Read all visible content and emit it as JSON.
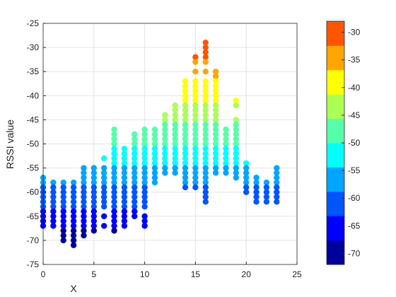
{
  "chart_data": {
    "type": "scatter",
    "title": "",
    "xlabel": "X",
    "ylabel": "RSSI value",
    "xlim": [
      0,
      25
    ],
    "ylim": [
      -75,
      -25
    ],
    "xticks": [
      0,
      5,
      10,
      15,
      20,
      25
    ],
    "yticks": [
      -25,
      -30,
      -35,
      -40,
      -45,
      -50,
      -55,
      -60,
      -65,
      -70,
      -75
    ],
    "grid": true,
    "colorbar": {
      "placement": "right",
      "range": [
        -72,
        -28
      ],
      "ticks": [
        -30,
        -35,
        -40,
        -45,
        -50,
        -55,
        -60,
        -65,
        -70
      ],
      "colors": [
        "#00009b",
        "#0000ff",
        "#0055ff",
        "#00a5ff",
        "#00ffff",
        "#55ffaa",
        "#aaff55",
        "#ffff00",
        "#ffa500",
        "#ff5500"
      ]
    },
    "columns": [
      {
        "x": 0,
        "values": [
          -57,
          -58,
          -59,
          -60,
          -61,
          -62,
          -63,
          -64,
          -65,
          -66,
          -67
        ]
      },
      {
        "x": 1,
        "values": [
          -58,
          -59,
          -60,
          -61,
          -62,
          -63,
          -64,
          -65,
          -66,
          -67
        ]
      },
      {
        "x": 2,
        "values": [
          -58,
          -59,
          -60,
          -61,
          -62,
          -63,
          -64,
          -65,
          -66,
          -67,
          -68,
          -69,
          -70
        ]
      },
      {
        "x": 3,
        "values": [
          -58,
          -59,
          -60,
          -61,
          -62,
          -63,
          -64,
          -65,
          -66,
          -67,
          -68,
          -69,
          -70,
          -71
        ]
      },
      {
        "x": 4,
        "values": [
          -55,
          -56,
          -57,
          -58,
          -59,
          -60,
          -61,
          -62,
          -63,
          -64,
          -65,
          -66,
          -67,
          -68,
          -69
        ]
      },
      {
        "x": 5,
        "values": [
          -55,
          -56,
          -57,
          -58,
          -59,
          -60,
          -61,
          -62,
          -63,
          -64,
          -65,
          -66,
          -67,
          -68
        ]
      },
      {
        "x": 6,
        "values": [
          -53,
          -55,
          -56,
          -57,
          -58,
          -59,
          -60,
          -61,
          -62,
          -63,
          -65,
          -67
        ]
      },
      {
        "x": 7,
        "values": [
          -47,
          -48,
          -49,
          -50,
          -51,
          -52,
          -53,
          -54,
          -55,
          -56,
          -57,
          -58,
          -59,
          -60,
          -61,
          -62,
          -63,
          -64,
          -65,
          -66,
          -67,
          -68
        ]
      },
      {
        "x": 8,
        "values": [
          -51,
          -52,
          -53,
          -54,
          -55,
          -56,
          -57,
          -58,
          -59,
          -60,
          -61,
          -62,
          -63,
          -64,
          -65,
          -66,
          -67
        ]
      },
      {
        "x": 9,
        "values": [
          -48,
          -49,
          -50,
          -51,
          -52,
          -53,
          -54,
          -55,
          -56,
          -57,
          -58,
          -59,
          -60,
          -61,
          -62,
          -63,
          -64,
          -65
        ]
      },
      {
        "x": 10,
        "values": [
          -47,
          -48,
          -49,
          -50,
          -51,
          -52,
          -53,
          -54,
          -55,
          -56,
          -57,
          -58,
          -59,
          -60,
          -61,
          -62,
          -63,
          -65,
          -66,
          -67
        ]
      },
      {
        "x": 11,
        "values": [
          -47,
          -48,
          -49,
          -50,
          -51,
          -52,
          -53,
          -54,
          -55,
          -56,
          -57,
          -58
        ]
      },
      {
        "x": 12,
        "values": [
          -44,
          -45,
          -46,
          -47,
          -48,
          -49,
          -50,
          -51,
          -52,
          -53,
          -54,
          -55,
          -56
        ]
      },
      {
        "x": 13,
        "values": [
          -42,
          -43,
          -44,
          -45,
          -46,
          -47,
          -48,
          -49,
          -50,
          -51,
          -52,
          -53,
          -54,
          -55,
          -56
        ]
      },
      {
        "x": 14,
        "values": [
          -37,
          -38,
          -39,
          -40,
          -41,
          -42,
          -43,
          -44,
          -45,
          -46,
          -47,
          -48,
          -49,
          -50,
          -51,
          -52,
          -53,
          -54,
          -55,
          -56,
          -57,
          -58,
          -59
        ]
      },
      {
        "x": 15,
        "values": [
          -32,
          -33,
          -35,
          -37,
          -38,
          -39,
          -40,
          -41,
          -42,
          -43,
          -44,
          -45,
          -46,
          -47,
          -48,
          -49,
          -50,
          -51,
          -52,
          -53,
          -54,
          -55,
          -56,
          -57,
          -58,
          -59
        ]
      },
      {
        "x": 16,
        "values": [
          -29,
          -30,
          -31,
          -32,
          -33,
          -35,
          -37,
          -38,
          -39,
          -40,
          -41,
          -42,
          -43,
          -44,
          -45,
          -46,
          -47,
          -48,
          -49,
          -50,
          -51,
          -52,
          -53,
          -54,
          -55,
          -56,
          -57,
          -58,
          -59,
          -60,
          -61,
          -62
        ]
      },
      {
        "x": 17,
        "values": [
          -35,
          -36,
          -37,
          -38,
          -39,
          -40,
          -41,
          -42,
          -43,
          -44,
          -45,
          -46,
          -47,
          -48,
          -49,
          -50,
          -51,
          -52,
          -53,
          -54,
          -55,
          -56
        ]
      },
      {
        "x": 18,
        "values": [
          -47,
          -48,
          -49,
          -50,
          -51,
          -52,
          -53,
          -54,
          -55,
          -56
        ]
      },
      {
        "x": 19,
        "values": [
          -41,
          -42,
          -45,
          -46,
          -47,
          -48,
          -49,
          -50,
          -51,
          -52,
          -53,
          -54,
          -55,
          -56,
          -57
        ]
      },
      {
        "x": 20,
        "values": [
          -54,
          -55,
          -56,
          -57,
          -58,
          -59,
          -60
        ]
      },
      {
        "x": 21,
        "values": [
          -57,
          -58,
          -59,
          -60,
          -61,
          -62
        ]
      },
      {
        "x": 22,
        "values": [
          -58,
          -59,
          -60,
          -61,
          -62
        ]
      },
      {
        "x": 23,
        "values": [
          -55,
          -56,
          -57,
          -58,
          -59,
          -60,
          -61,
          -62
        ]
      }
    ]
  }
}
